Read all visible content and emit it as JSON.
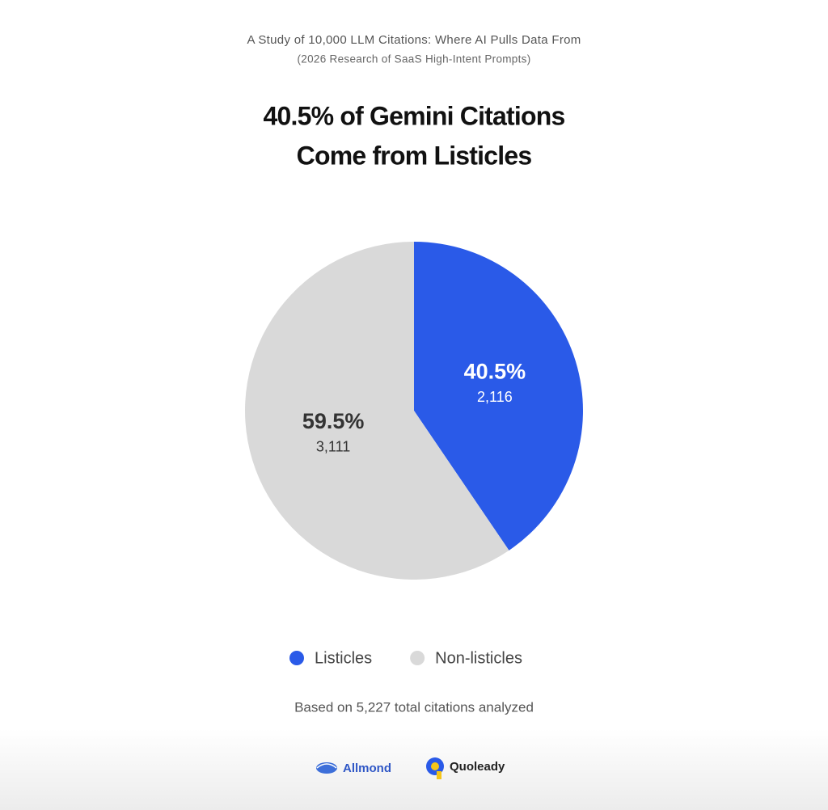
{
  "chart_data": {
    "type": "pie",
    "supertitle": "A Study of 10,000 LLM Citations: Where AI Pulls Data From",
    "subtitle": "(2026 Research of SaaS High-Intent Prompts)",
    "title_lines": [
      "40.5% of Gemini Citations",
      "Come from Listicles"
    ],
    "categories": [
      "Listicles",
      "Non-listicles"
    ],
    "values": [
      40.5,
      59.5
    ],
    "value_labels": [
      "40.5%",
      "59.5%"
    ],
    "counts": [
      2116,
      3111
    ],
    "count_labels": [
      "2,116",
      "3,111"
    ],
    "colors": [
      "#2a5ae8",
      "#d9d9d9"
    ],
    "label_colors": [
      "#ffffff",
      "#333333"
    ],
    "footnote": "Based on 5,227 total citations analyzed",
    "logos": [
      "Allmond",
      "Quoleady"
    ]
  }
}
